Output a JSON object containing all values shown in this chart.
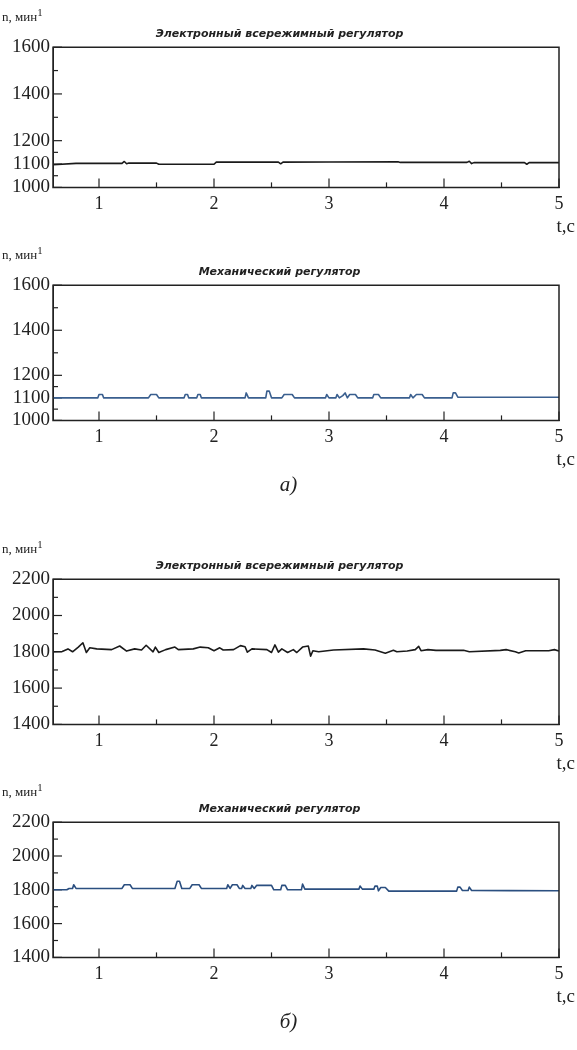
{
  "chart_data": [
    {
      "type": "line",
      "title": "Электронный всережимный регулятор",
      "ylabel": "n, мин$^{1}$",
      "xlabel": "t,c",
      "color": "#1a1a1a",
      "x": [
        0.6,
        0.8,
        1.2,
        1.22,
        1.24,
        1.26,
        1.5,
        1.52,
        2.0,
        2.02,
        2.56,
        2.58,
        2.6,
        3.0,
        3.6,
        3.62,
        4.2,
        4.22,
        4.24,
        4.26,
        4.7,
        4.72,
        4.74,
        5.0
      ],
      "values": [
        1097,
        1103,
        1103,
        1111,
        1101,
        1104,
        1104,
        1099,
        1099,
        1108,
        1108,
        1101,
        1108,
        1109,
        1110,
        1107,
        1107,
        1112,
        1102,
        1106,
        1106,
        1099,
        1106,
        1106
      ],
      "xlim": [
        0.6,
        5
      ],
      "xticks": [
        1,
        {
          "value": 1.5,
          "label": null
        },
        2,
        {
          "value": 2.5,
          "label": null
        },
        3,
        {
          "value": 3.5,
          "label": null
        },
        4,
        {
          "value": 4.5,
          "label": null
        },
        5
      ],
      "ylim": [
        1000,
        1600
      ],
      "yticks": [
        1000,
        {
          "value": 1050,
          "label": null
        },
        1100,
        {
          "value": 1150,
          "label": null
        },
        1200,
        {
          "value": 1300,
          "label": null
        },
        1400,
        {
          "value": 1500,
          "label": null
        },
        1600
      ]
    },
    {
      "type": "line",
      "title": "Механический регулятор",
      "ylabel": "n, мин$^{1}$",
      "xlabel": "t,c",
      "color": "#3a5f8f",
      "annotations": [
        "а)"
      ],
      "x": [
        0.6,
        0.99,
        1.0,
        1.03,
        1.04,
        1.43,
        1.45,
        1.5,
        1.52,
        1.74,
        1.75,
        1.77,
        1.78,
        1.85,
        1.86,
        1.88,
        1.89,
        2.27,
        2.28,
        2.3,
        2.45,
        2.46,
        2.48,
        2.5,
        2.59,
        2.61,
        2.68,
        2.7,
        2.97,
        2.98,
        3.0,
        3.06,
        3.07,
        3.09,
        3.12,
        3.14,
        3.16,
        3.18,
        3.23,
        3.25,
        3.38,
        3.39,
        3.43,
        3.45,
        3.7,
        3.71,
        3.73,
        3.76,
        3.81,
        3.83,
        4.07,
        4.08,
        4.1,
        4.12,
        5.0
      ],
      "values": [
        1100,
        1100,
        1115,
        1115,
        1100,
        1100,
        1115,
        1115,
        1100,
        1100,
        1115,
        1115,
        1100,
        1100,
        1115,
        1115,
        1100,
        1100,
        1122,
        1100,
        1100,
        1130,
        1130,
        1100,
        1100,
        1115,
        1115,
        1100,
        1100,
        1115,
        1100,
        1100,
        1115,
        1100,
        1110,
        1122,
        1100,
        1115,
        1115,
        1100,
        1100,
        1115,
        1115,
        1100,
        1100,
        1115,
        1100,
        1115,
        1115,
        1100,
        1100,
        1122,
        1122,
        1103,
        1103
      ],
      "xlim": [
        0.6,
        5
      ],
      "xticks": [
        1,
        {
          "value": 1.5,
          "label": null
        },
        2,
        {
          "value": 2.5,
          "label": null
        },
        3,
        {
          "value": 3.5,
          "label": null
        },
        4,
        {
          "value": 4.5,
          "label": null
        },
        5
      ],
      "ylim": [
        1000,
        1600
      ],
      "yticks": [
        1000,
        {
          "value": 1050,
          "label": null
        },
        1100,
        {
          "value": 1150,
          "label": null
        },
        1200,
        {
          "value": 1300,
          "label": null
        },
        1400,
        {
          "value": 1500,
          "label": null
        },
        1600
      ]
    },
    {
      "type": "line",
      "title": "Электронный всережимный регулятор",
      "ylabel": "n, мин$^{1}$",
      "xlabel": "t,c",
      "color": "#1a1a1a",
      "x": [
        0.6,
        0.68,
        0.73,
        0.77,
        0.82,
        0.86,
        0.89,
        0.92,
        0.98,
        1.11,
        1.18,
        1.24,
        1.31,
        1.37,
        1.41,
        1.47,
        1.49,
        1.52,
        1.58,
        1.66,
        1.69,
        1.82,
        1.88,
        1.95,
        2.0,
        2.05,
        2.08,
        2.17,
        2.23,
        2.27,
        2.29,
        2.33,
        2.46,
        2.5,
        2.53,
        2.56,
        2.59,
        2.64,
        2.69,
        2.72,
        2.77,
        2.82,
        2.84,
        2.86,
        2.91,
        3.04,
        3.3,
        3.4,
        3.49,
        3.56,
        3.59,
        3.68,
        3.75,
        3.78,
        3.8,
        3.86,
        3.93,
        4.17,
        4.22,
        4.49,
        4.54,
        4.62,
        4.65,
        4.71,
        4.91,
        4.96,
        5.0
      ],
      "values": [
        1800,
        1802,
        1816,
        1800,
        1826,
        1850,
        1796,
        1822,
        1816,
        1812,
        1832,
        1804,
        1816,
        1810,
        1836,
        1800,
        1826,
        1796,
        1812,
        1826,
        1812,
        1816,
        1826,
        1822,
        1806,
        1822,
        1810,
        1812,
        1834,
        1828,
        1798,
        1816,
        1812,
        1796,
        1838,
        1798,
        1816,
        1796,
        1812,
        1796,
        1826,
        1832,
        1776,
        1806,
        1800,
        1810,
        1816,
        1810,
        1792,
        1808,
        1800,
        1804,
        1812,
        1830,
        1806,
        1812,
        1808,
        1808,
        1800,
        1808,
        1812,
        1800,
        1794,
        1806,
        1806,
        1812,
        1804
      ],
      "xlim": [
        0.6,
        5
      ],
      "xticks": [
        1,
        {
          "value": 1.5,
          "label": null
        },
        2,
        {
          "value": 2.5,
          "label": null
        },
        3,
        {
          "value": 3.5,
          "label": null
        },
        4,
        {
          "value": 4.5,
          "label": null
        },
        5
      ],
      "ylim": [
        1400,
        2200
      ],
      "yticks": [
        1400,
        {
          "value": 1500,
          "label": null
        },
        1600,
        {
          "value": 1700,
          "label": null
        },
        1800,
        {
          "value": 1900,
          "label": null
        },
        2000,
        {
          "value": 2100,
          "label": null
        },
        2200
      ]
    },
    {
      "type": "line",
      "title": "Механический регулятор",
      "ylabel": "n, мин$^{1}$",
      "xlabel": "t,c",
      "color": "#2b4f80",
      "annotations": [
        "б)"
      ],
      "x": [
        0.6,
        0.72,
        0.74,
        0.77,
        0.78,
        0.8,
        1.2,
        1.22,
        1.27,
        1.29,
        1.66,
        1.68,
        1.7,
        1.72,
        1.79,
        1.81,
        1.87,
        1.89,
        2.11,
        2.12,
        2.14,
        2.16,
        2.2,
        2.22,
        2.24,
        2.25,
        2.27,
        2.32,
        2.33,
        2.35,
        2.37,
        2.5,
        2.52,
        2.58,
        2.59,
        2.62,
        2.64,
        2.76,
        2.77,
        2.79,
        3.26,
        3.27,
        3.29,
        3.39,
        3.4,
        3.42,
        3.43,
        3.45,
        3.49,
        3.52,
        4.11,
        4.12,
        4.14,
        4.16,
        4.21,
        4.22,
        4.24,
        5.0
      ],
      "values": [
        1800,
        1800,
        1808,
        1808,
        1830,
        1808,
        1808,
        1830,
        1830,
        1808,
        1808,
        1851,
        1851,
        1808,
        1808,
        1830,
        1830,
        1808,
        1808,
        1830,
        1808,
        1830,
        1830,
        1808,
        1808,
        1826,
        1808,
        1808,
        1826,
        1808,
        1826,
        1826,
        1800,
        1800,
        1826,
        1826,
        1800,
        1800,
        1834,
        1804,
        1804,
        1822,
        1804,
        1804,
        1822,
        1822,
        1794,
        1814,
        1814,
        1792,
        1792,
        1816,
        1816,
        1796,
        1796,
        1816,
        1796,
        1794
      ],
      "xlim": [
        0.6,
        5
      ],
      "xticks": [
        1,
        {
          "value": 1.5,
          "label": null
        },
        2,
        {
          "value": 2.5,
          "label": null
        },
        3,
        {
          "value": 3.5,
          "label": null
        },
        4,
        {
          "value": 4.5,
          "label": null
        },
        5
      ],
      "ylim": [
        1400,
        2200
      ],
      "yticks": [
        1400,
        {
          "value": 1500,
          "label": null
        },
        1600,
        {
          "value": 1700,
          "label": null
        },
        1800,
        {
          "value": 1900,
          "label": null
        },
        2000,
        {
          "value": 2100,
          "label": null
        },
        2200
      ]
    }
  ]
}
